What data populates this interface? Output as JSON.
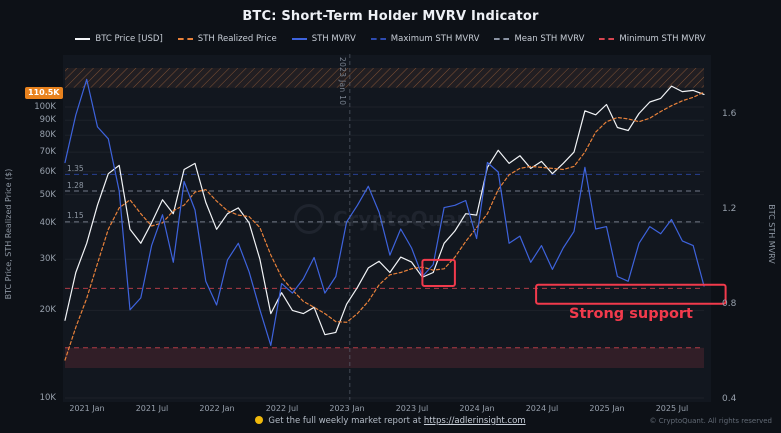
{
  "title": "BTC: Short-Term Holder MVRV Indicator",
  "legend": {
    "items": [
      {
        "label": "BTC Price [USD]",
        "color": "#f2f4f7",
        "style": "solid"
      },
      {
        "label": "STH Realized Price",
        "color": "#e8813a",
        "style": "dashed"
      },
      {
        "label": "STH MVRV",
        "color": "#3e63dd",
        "style": "solid"
      },
      {
        "label": "Maximum STH MVRV",
        "color": "#2e4bb0",
        "style": "dashed"
      },
      {
        "label": "Mean STH MVRV",
        "color": "#8a93a3",
        "style": "dashed"
      },
      {
        "label": "Minimum STH MVRV",
        "color": "#d64550",
        "style": "dashed"
      }
    ]
  },
  "axes": {
    "left": {
      "title": "BTC Price, STH Realized Price ($)",
      "scale": "log",
      "ticks": [
        {
          "label": "10K",
          "value": 10000
        },
        {
          "label": "20K",
          "value": 20000
        },
        {
          "label": "30K",
          "value": 30000
        },
        {
          "label": "40K",
          "value": 40000
        },
        {
          "label": "50K",
          "value": 50000
        },
        {
          "label": "60K",
          "value": 60000
        },
        {
          "label": "70K",
          "value": 70000
        },
        {
          "label": "80K",
          "value": 80000
        },
        {
          "label": "90K",
          "value": 90000
        },
        {
          "label": "100K",
          "value": 100000
        }
      ]
    },
    "left_badge": {
      "label": "110.5K",
      "value": 110500,
      "color": "#e8821e"
    },
    "right": {
      "title": "BTC STH MVRV",
      "scale": "linear",
      "ticks": [
        {
          "label": "1.6",
          "value": 1.6
        },
        {
          "label": "1.2",
          "value": 1.2
        },
        {
          "label": "0.8",
          "value": 0.8
        },
        {
          "label": "0.4",
          "value": 0.4
        }
      ]
    },
    "x": {
      "ticks": [
        {
          "label": "2021 Jan",
          "month_index": 2
        },
        {
          "label": "2021 Jul",
          "month_index": 8
        },
        {
          "label": "2022 Jan",
          "month_index": 14
        },
        {
          "label": "2022 Jul",
          "month_index": 20
        },
        {
          "label": "2023 Jan",
          "month_index": 26
        },
        {
          "label": "2023 Jul",
          "month_index": 32
        },
        {
          "label": "2024 Jan",
          "month_index": 38
        },
        {
          "label": "2024 Jul",
          "month_index": 44
        },
        {
          "label": "2025 Jan",
          "month_index": 50
        },
        {
          "label": "2025 Jul",
          "month_index": 56
        }
      ]
    }
  },
  "chart_data": {
    "type": "line",
    "x_first_month": "2020-11",
    "x_interval": "monthly",
    "left_ylim": [
      10000,
      120000
    ],
    "right_ylim": [
      0.4,
      1.79
    ],
    "series": [
      {
        "name": "BTC Price [USD]",
        "axis": "left",
        "color": "#f2f4f7",
        "style": "solid",
        "values": [
          18500,
          27000,
          34000,
          46000,
          59000,
          63000,
          38000,
          34000,
          40000,
          48000,
          43000,
          61000,
          64000,
          47000,
          38000,
          43000,
          45000,
          40000,
          30000,
          19500,
          23000,
          20000,
          19500,
          20500,
          16500,
          16800,
          21000,
          24000,
          28000,
          29500,
          27000,
          30500,
          29300,
          26000,
          27000,
          34000,
          37500,
          43000,
          42500,
          62000,
          71000,
          64000,
          68000,
          61500,
          65000,
          59000,
          64000,
          70000,
          97000,
          94000,
          102000,
          85000,
          83000,
          95000,
          104000,
          107000,
          118000,
          113000,
          114000,
          110500
        ]
      },
      {
        "name": "STH Realized Price",
        "axis": "left",
        "color": "#e8813a",
        "style": "dashed",
        "values": [
          13500,
          17500,
          22000,
          29000,
          38000,
          45000,
          48000,
          43000,
          39000,
          40000,
          44000,
          46000,
          51000,
          52000,
          47500,
          44000,
          42500,
          42000,
          38500,
          31000,
          26000,
          23500,
          21500,
          20500,
          19500,
          18300,
          18200,
          19500,
          21500,
          24500,
          26500,
          27000,
          27800,
          28200,
          27500,
          27800,
          30500,
          34500,
          38500,
          43000,
          52000,
          58500,
          61500,
          62500,
          62000,
          61500,
          61000,
          62500,
          70000,
          82000,
          89000,
          92000,
          91000,
          89000,
          91500,
          96500,
          101000,
          105000,
          108000,
          112500
        ]
      },
      {
        "name": "STH MVRV",
        "axis": "right",
        "color": "#3e63dd",
        "style": "solid",
        "values": [
          1.4,
          1.6,
          1.75,
          1.55,
          1.5,
          1.28,
          0.78,
          0.83,
          1.05,
          1.18,
          0.98,
          1.32,
          1.2,
          0.9,
          0.8,
          0.99,
          1.06,
          0.94,
          0.78,
          0.63,
          0.89,
          0.85,
          0.91,
          1.0,
          0.85,
          0.92,
          1.15,
          1.22,
          1.3,
          1.19,
          1.01,
          1.12,
          1.04,
          0.92,
          0.97,
          1.21,
          1.22,
          1.24,
          1.08,
          1.4,
          1.36,
          1.06,
          1.09,
          0.98,
          1.05,
          0.95,
          1.04,
          1.11,
          1.38,
          1.12,
          1.13,
          0.92,
          0.9,
          1.06,
          1.13,
          1.1,
          1.16,
          1.07,
          1.05,
          0.88
        ]
      }
    ],
    "levels": [
      {
        "name": "Maximum STH MVRV",
        "value": 1.35,
        "label": "1.35",
        "color": "#2e4bb0"
      },
      {
        "name": "Upper Band",
        "value": 1.28,
        "label": "1.28",
        "color": "#8a93a3"
      },
      {
        "name": "Mean STH MVRV",
        "value": 1.15,
        "label": "1.15",
        "color": "#8a93a3"
      },
      {
        "name": "Minimum STH MVRV",
        "value": 0.87,
        "color": "#d64550"
      },
      {
        "name": "Lower Band",
        "value": 0.62,
        "color": "#d64550"
      }
    ],
    "bands": {
      "overheated_above": 1.715,
      "support_upper": 0.62,
      "support_lower": 0.535
    },
    "event_line": {
      "label": "2023 Jan 10",
      "month_index": 26.3
    },
    "annotation_color": "#f23a4c",
    "annotations": [
      {
        "i1": 33,
        "i2": 36,
        "v1": 0.88,
        "v2": 0.99
      },
      {
        "i1": 43.5,
        "i2": 61,
        "v1": 0.805,
        "v2": 0.885,
        "label": "Strong support"
      }
    ]
  },
  "watermark": {
    "text": "CryptoQuant"
  },
  "footer": {
    "bullet_color": "#f0b90b",
    "text": "Get the full weekly market report at",
    "link": "https://adlerinsight.com"
  },
  "copyright": "© CryptoQuant. All rights reserved"
}
